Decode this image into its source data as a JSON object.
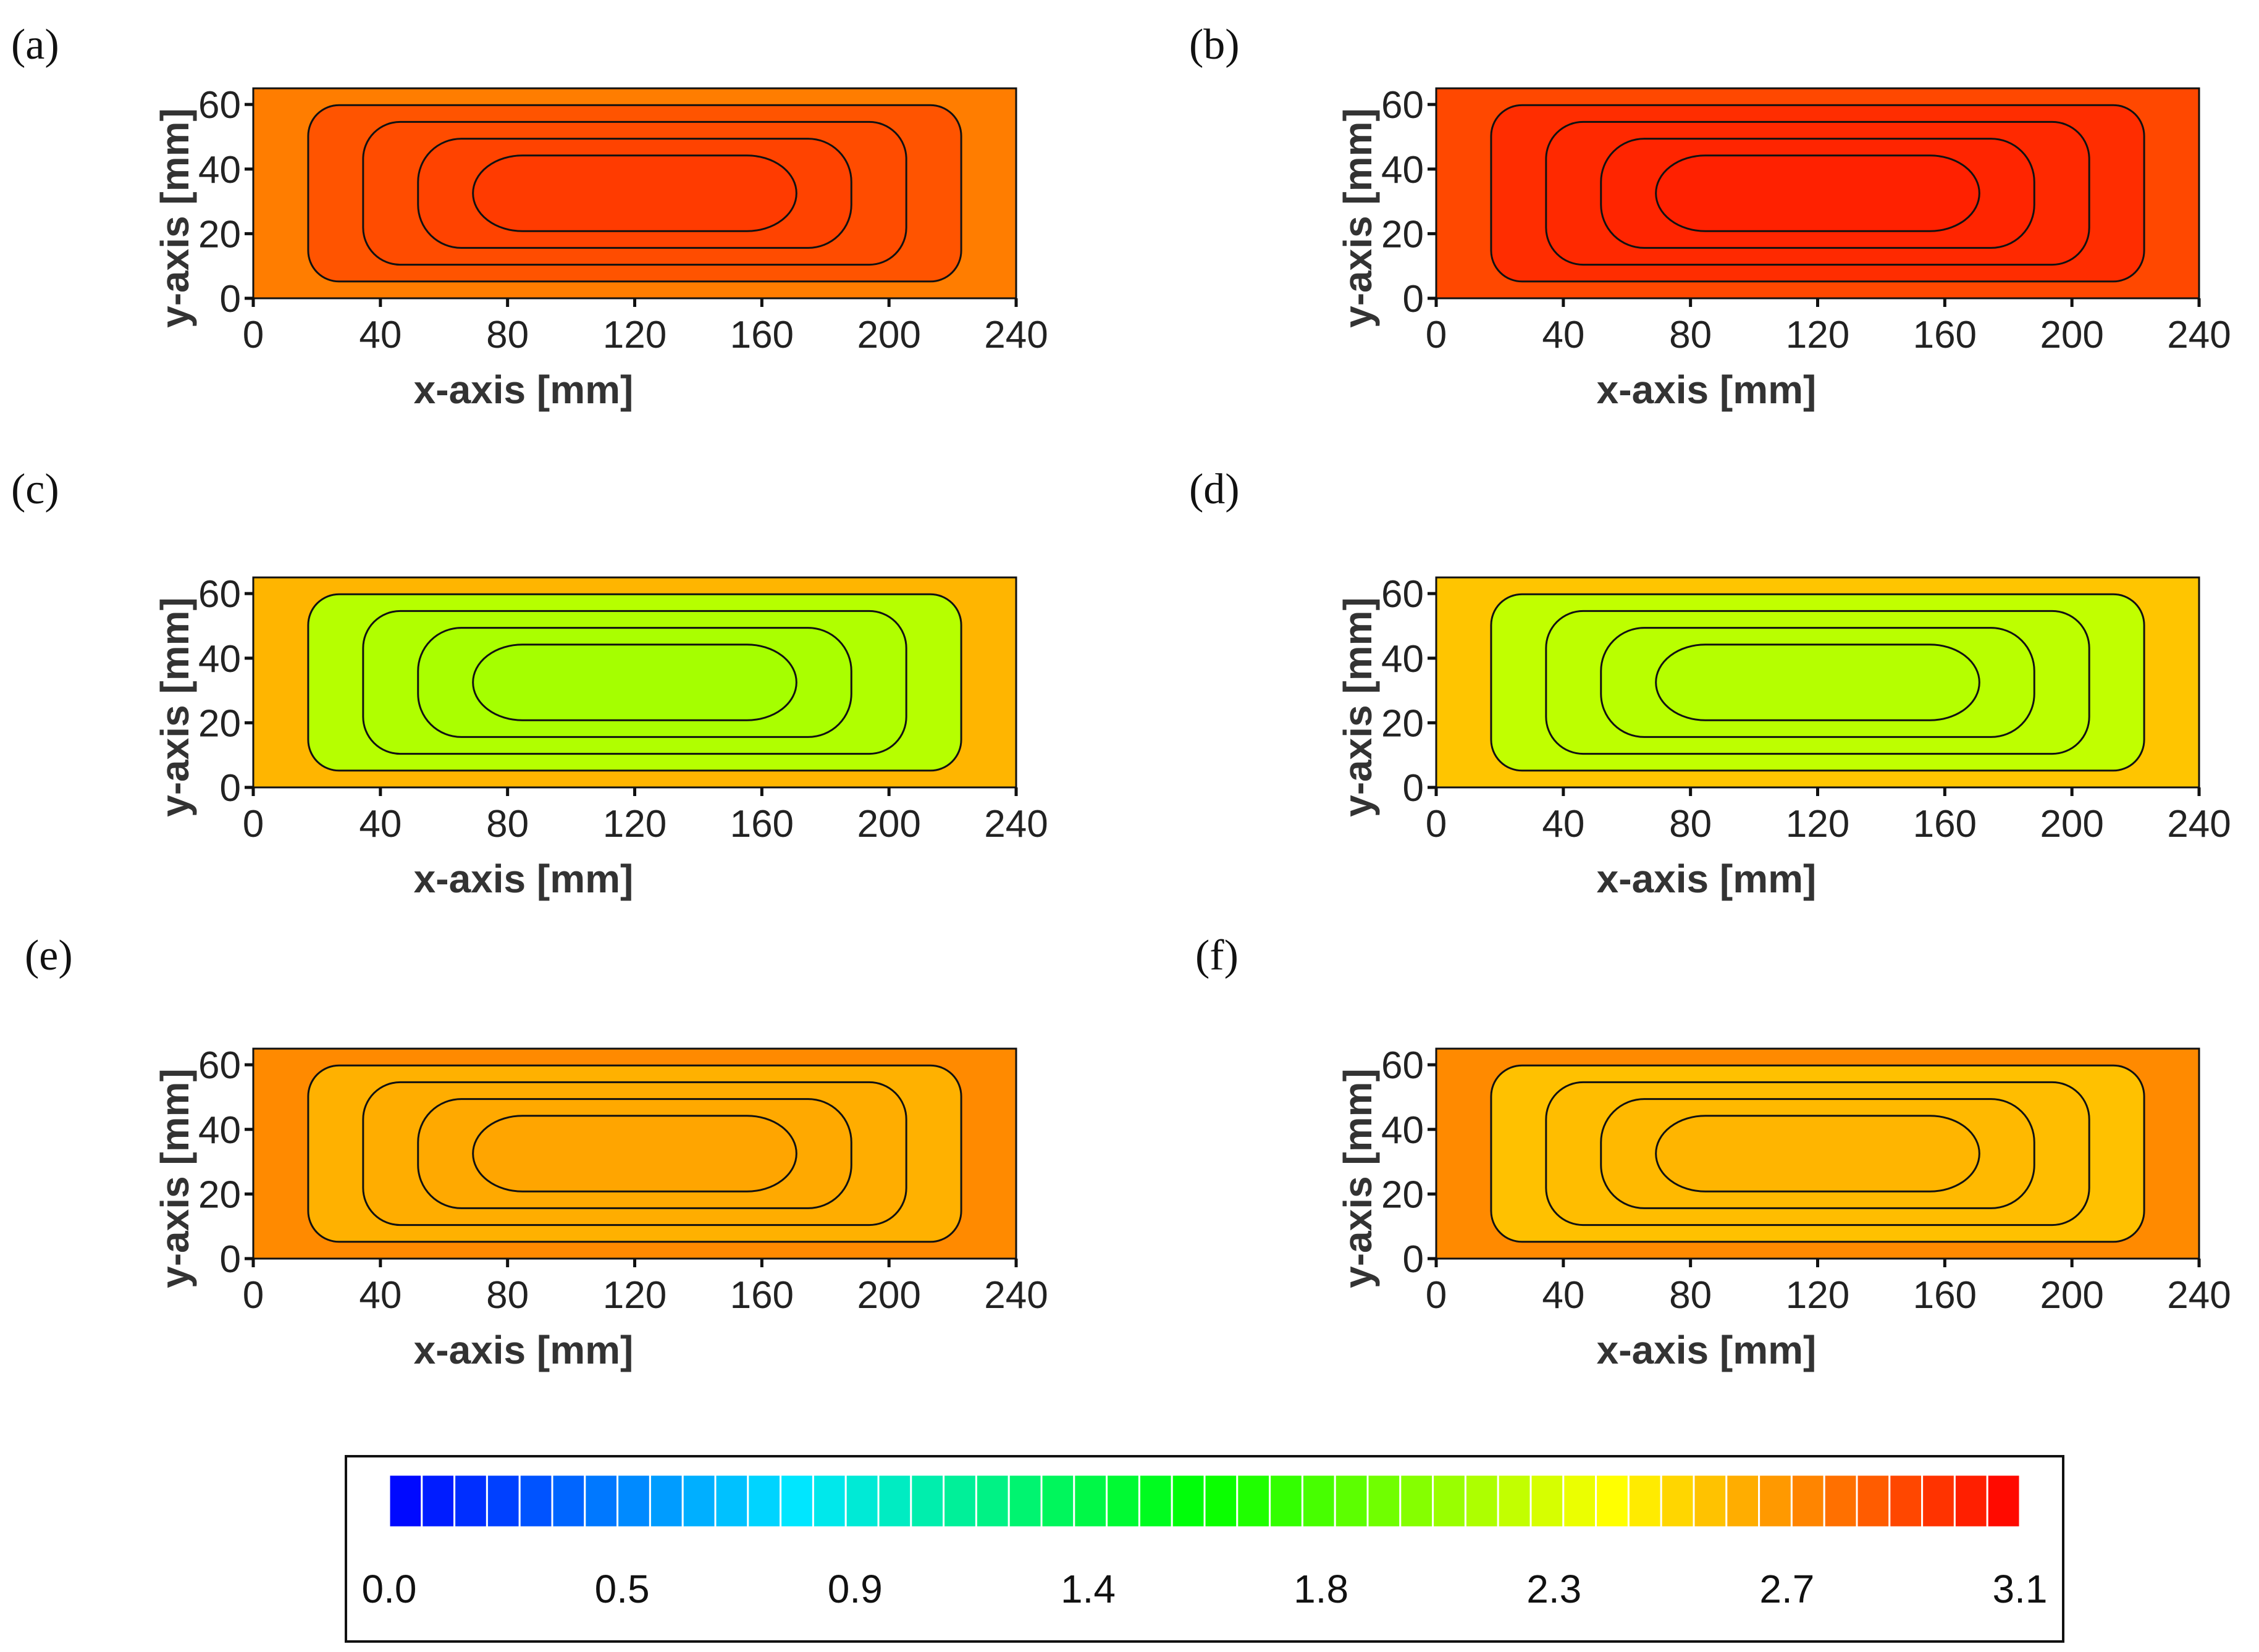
{
  "chart_data": {
    "type": "heatmap",
    "panels": [
      {
        "id": "a",
        "label": "(a)",
        "xlabel": "x-axis [mm]",
        "ylabel": "y-axis [mm]",
        "xlim": [
          0,
          240
        ],
        "ylim": [
          0,
          65
        ],
        "xticks": [
          "0",
          "40",
          "80",
          "120",
          "160",
          "200",
          "240"
        ],
        "yticks": [
          "0",
          "20",
          "40",
          "60"
        ],
        "base_value": 2.82,
        "center_value": 2.92,
        "edge_value": 2.72
      },
      {
        "id": "b",
        "label": "(b)",
        "xlabel": "x-axis [mm]",
        "ylabel": "y-axis [mm]",
        "xlim": [
          0,
          240
        ],
        "ylim": [
          0,
          65
        ],
        "xticks": [
          "0",
          "40",
          "80",
          "120",
          "160",
          "200",
          "240"
        ],
        "yticks": [
          "0",
          "20",
          "40",
          "60"
        ],
        "base_value": 2.95,
        "center_value": 3.0,
        "edge_value": 2.88
      },
      {
        "id": "c",
        "label": "(c)",
        "xlabel": "x-axis [mm]",
        "ylabel": "y-axis [mm]",
        "xlim": [
          0,
          240
        ],
        "ylim": [
          0,
          65
        ],
        "xticks": [
          "0",
          "40",
          "80",
          "120",
          "160",
          "200",
          "240"
        ],
        "yticks": [
          "0",
          "20",
          "40",
          "60"
        ],
        "base_value": 2.12,
        "center_value": 2.05,
        "edge_value": 2.55
      },
      {
        "id": "d",
        "label": "(d)",
        "xlabel": "x-axis [mm]",
        "ylabel": "y-axis [mm]",
        "xlim": [
          0,
          240
        ],
        "ylim": [
          0,
          65
        ],
        "xticks": [
          "0",
          "40",
          "80",
          "120",
          "160",
          "200",
          "240"
        ],
        "yticks": [
          "0",
          "20",
          "40",
          "60"
        ],
        "base_value": 2.15,
        "center_value": 2.1,
        "edge_value": 2.5
      },
      {
        "id": "e",
        "label": "(e)",
        "xlabel": "x-axis [mm]",
        "ylabel": "y-axis [mm]",
        "xlim": [
          0,
          240
        ],
        "ylim": [
          0,
          65
        ],
        "xticks": [
          "0",
          "40",
          "80",
          "120",
          "160",
          "200",
          "240"
        ],
        "yticks": [
          "0",
          "20",
          "40",
          "60"
        ],
        "base_value": 2.55,
        "center_value": 2.6,
        "edge_value": 2.68
      },
      {
        "id": "f",
        "label": "(f)",
        "xlabel": "x-axis [mm]",
        "ylabel": "y-axis [mm]",
        "xlim": [
          0,
          240
        ],
        "ylim": [
          0,
          65
        ],
        "xticks": [
          "0",
          "40",
          "80",
          "120",
          "160",
          "200",
          "240"
        ],
        "yticks": [
          "0",
          "20",
          "40",
          "60"
        ],
        "base_value": 2.5,
        "center_value": 2.55,
        "edge_value": 2.68
      }
    ],
    "colorbar": {
      "min": 0.0,
      "max": 3.1,
      "steps": 50,
      "tick_labels": [
        "0.0",
        "0.5",
        "0.9",
        "1.4",
        "1.8",
        "2.3",
        "2.7",
        "3.1"
      ]
    }
  }
}
